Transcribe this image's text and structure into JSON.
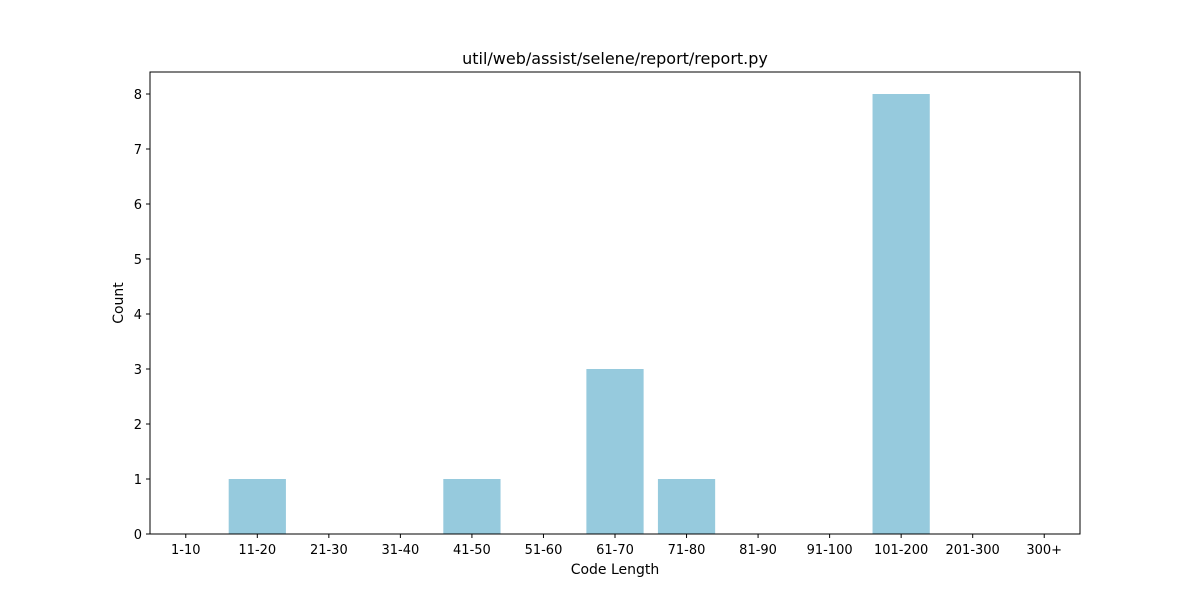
{
  "chart_data": {
    "type": "bar",
    "title": "util/web/assist/selene/report/report.py",
    "xlabel": "Code Length",
    "ylabel": "Count",
    "categories": [
      "1-10",
      "11-20",
      "21-30",
      "31-40",
      "41-50",
      "51-60",
      "61-70",
      "71-80",
      "81-90",
      "91-100",
      "101-200",
      "201-300",
      "300+"
    ],
    "values": [
      0,
      1,
      0,
      0,
      1,
      0,
      3,
      1,
      0,
      0,
      8,
      0,
      0
    ],
    "ylim": [
      0,
      8.4
    ],
    "yticks": [
      0,
      1,
      2,
      3,
      4,
      5,
      6,
      7,
      8
    ],
    "grid": false,
    "legend": "none",
    "bar_color": "#96cadd"
  }
}
